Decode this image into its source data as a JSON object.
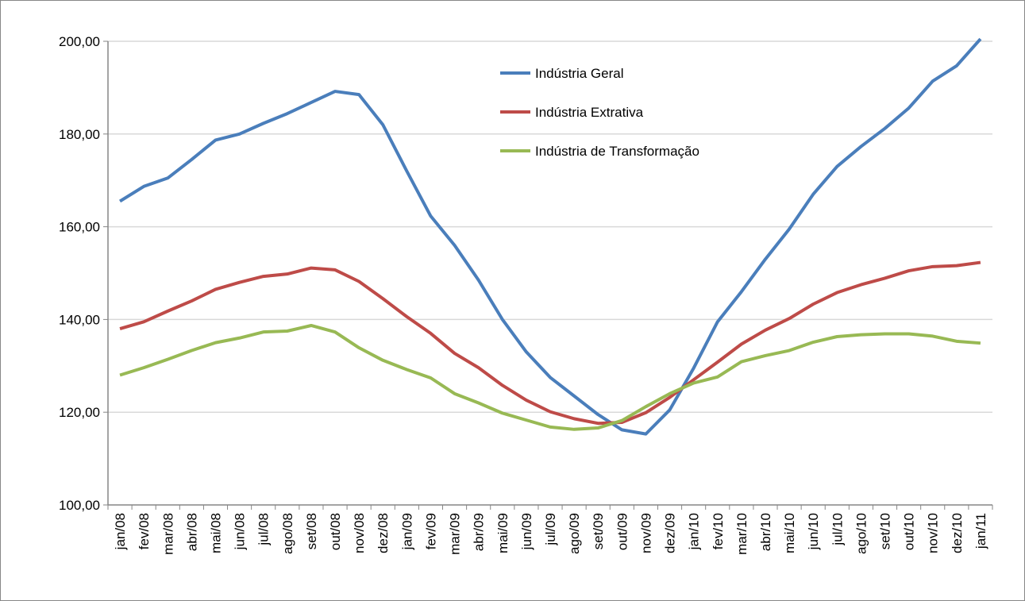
{
  "chart_data": {
    "type": "line",
    "categories": [
      "jan/08",
      "fev/08",
      "mar/08",
      "abr/08",
      "mai/08",
      "jun/08",
      "jul/08",
      "ago/08",
      "set/08",
      "out/08",
      "nov/08",
      "dez/08",
      "jan/09",
      "fev/09",
      "mar/09",
      "abr/09",
      "mai/09",
      "jun/09",
      "jul/09",
      "ago/09",
      "set/09",
      "out/09",
      "nov/09",
      "dez/09",
      "jan/10",
      "fev/10",
      "mar/10",
      "abr/10",
      "mai/10",
      "jun/10",
      "jul/10",
      "ago/10",
      "set/10",
      "out/10",
      "nov/10",
      "dez/10",
      "jan/11"
    ],
    "series": [
      {
        "name": "Indústria Geral",
        "color": "#4a7ebb",
        "values": [
          165.5,
          168.7,
          170.5,
          174.5,
          178.7,
          180,
          182.3,
          184.4,
          186.8,
          189.2,
          188.5,
          182,
          172,
          162.3,
          156,
          148.5,
          140,
          133,
          127.5,
          123.5,
          119.5,
          116.2,
          115.3,
          120.5,
          129.5,
          139.5,
          146,
          153,
          159.5,
          167,
          173,
          177.3,
          181.2,
          185.6,
          191.4,
          194.7,
          200.5
        ]
      },
      {
        "name": "Indústria Extrativa",
        "color": "#be4b48",
        "values": [
          138,
          139.5,
          141.8,
          144,
          146.5,
          148,
          149.3,
          149.8,
          151.1,
          150.7,
          148.2,
          144.5,
          140.6,
          137,
          132.7,
          129.6,
          125.8,
          122.6,
          120.1,
          118.6,
          117.6,
          117.8,
          119.9,
          123.2,
          127,
          130.8,
          134.7,
          137.7,
          140.2,
          143.3,
          145.8,
          147.5,
          148.9,
          150.5,
          151.4,
          151.6,
          152.3
        ]
      },
      {
        "name": "Indústria de Transformação",
        "color": "#98b954",
        "values": [
          128,
          129.6,
          131.4,
          133.3,
          135,
          136,
          137.3,
          137.5,
          138.7,
          137.3,
          133.9,
          131.2,
          129.2,
          127.4,
          124,
          122,
          119.8,
          118.3,
          116.8,
          116.3,
          116.6,
          118.2,
          121.2,
          124,
          126.3,
          127.6,
          130.9,
          132.2,
          133.3,
          135.1,
          136.3,
          136.7,
          136.9,
          136.9,
          136.4,
          135.3,
          134.9
        ]
      }
    ],
    "ylim": [
      100,
      200
    ],
    "yticks": [
      {
        "value": 100,
        "label": "100,00"
      },
      {
        "value": 120,
        "label": "120,00"
      },
      {
        "value": 140,
        "label": "140,00"
      },
      {
        "value": 160,
        "label": "160,00"
      },
      {
        "value": 180,
        "label": "180,00"
      },
      {
        "value": 200,
        "label": "200,00"
      }
    ],
    "grid": true,
    "legend": "top"
  }
}
